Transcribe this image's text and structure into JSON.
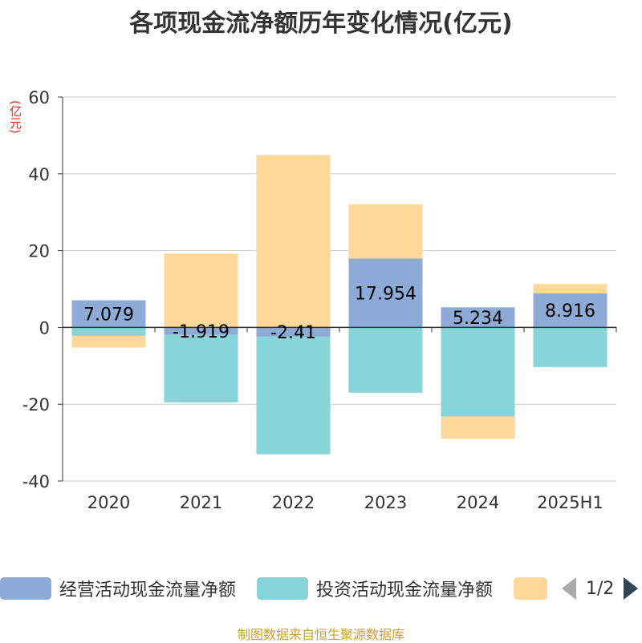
{
  "chart_data": {
    "type": "bar",
    "stacked": true,
    "title": "各项现金流净额历年变化情况(亿元)",
    "ylabel": "(亿元)",
    "ylim": [
      -40,
      60
    ],
    "yticks": [
      60,
      40,
      20,
      0,
      -20,
      -40
    ],
    "categories": [
      "2020",
      "2021",
      "2022",
      "2023",
      "2024",
      "2025H1"
    ],
    "series": [
      {
        "name": "经营活动现金流量净额",
        "color": "#8eabd8",
        "values": [
          7.079,
          -1.919,
          -2.41,
          17.954,
          5.234,
          8.916
        ]
      },
      {
        "name": "投资活动现金流量净额",
        "color": "#86d5d8",
        "values": [
          -2.2,
          -17.6,
          -30.6,
          -17.0,
          -23.2,
          -10.3
        ]
      },
      {
        "name": "",
        "color": "#fed898",
        "values": [
          -3.0,
          19.2,
          44.9,
          14.1,
          -5.8,
          2.4
        ]
      }
    ],
    "data_labels": [
      "7.079",
      "-1.919",
      "-2.41",
      "17.954",
      "5.234",
      "8.916"
    ],
    "grid": true
  },
  "legend": {
    "items": [
      {
        "label": "经营活动现金流量净额",
        "color": "#8eabd8"
      },
      {
        "label": "投资活动现金流量净额",
        "color": "#86d5d8"
      },
      {
        "label": "",
        "color": "#fed898"
      }
    ],
    "page": "1/2"
  },
  "source": "制图数据来自恒生聚源数据库"
}
